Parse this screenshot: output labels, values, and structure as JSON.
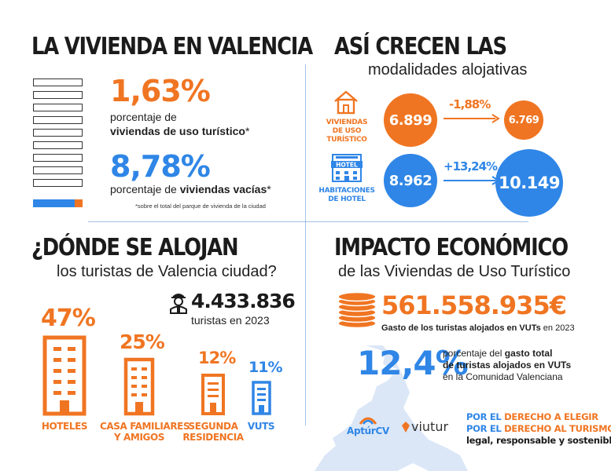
{
  "colors": {
    "orange": "#f07522",
    "blue": "#2f86e6",
    "map": "#dbe7f7",
    "dark": "#1b1b1b"
  },
  "vivienda": {
    "title": "LA VIVIENDA EN VALENCIA",
    "stat1": {
      "value": "1,63%",
      "line1": "porcentaje de",
      "line2_bold": "viviendas de uso turístico",
      "line2_suffix": "*"
    },
    "stat2": {
      "value": "8,78%",
      "line1": "porcentaje de ",
      "line1_bold": "viviendas vacías",
      "line1_suffix": "*"
    },
    "footnote": "*sobre el total del parque de vivienda de la ciudad",
    "bar_shares": {
      "vacias_pct": 8.78,
      "turisticas_pct": 1.63
    }
  },
  "crecen": {
    "title": "ASÍ CRECEN LAS",
    "subtitle": "modalidades alojativas",
    "vut": {
      "icon": "house-icon",
      "label_line1": "VIVIENDAS",
      "label_line2": "DE USO TURÍSTICO",
      "from": "6.899",
      "change": "-1,88%",
      "to": "6.769"
    },
    "hotel": {
      "icon": "hotel-icon",
      "icon_text": "HOTEL",
      "label_line1": "HABITACIONES",
      "label_line2": "DE HOTEL",
      "from": "8.962",
      "change": "+13,24%",
      "to": "10.149"
    }
  },
  "alojan": {
    "title": "¿DÓNDE SE ALOJAN",
    "subtitle": "los turistas de Valencia ciudad?",
    "tourists": {
      "icon": "tourist-icon",
      "value": "4.433.836",
      "caption": "turistas en 2023"
    },
    "buildings": [
      {
        "pct": "47%",
        "label_line1": "HOTELES",
        "label_line2": "",
        "color": "#f07522"
      },
      {
        "pct": "25%",
        "label_line1": "CASA FAMILIARES",
        "label_line2": "Y AMIGOS",
        "color": "#f07522"
      },
      {
        "pct": "12%",
        "label_line1": "SEGUNDA",
        "label_line2": "RESIDENCIA",
        "color": "#f07522"
      },
      {
        "pct": "11%",
        "label_line1": "VUTS",
        "label_line2": "",
        "color": "#2f86e6"
      }
    ]
  },
  "impacto": {
    "title": "IMPACTO ECONÓMICO",
    "subtitle": "de las Viviendas de Uso Turístico",
    "gasto": {
      "icon": "coins-icon",
      "value": "561.558.935€",
      "caption_bold": "Gasto de los turistas alojados en VUTs",
      "caption_suffix": " en 2023"
    },
    "porcentaje": {
      "value": "12,4%",
      "line1": "porcentaje del ",
      "line1_bold": "gasto total",
      "line2_bold": "de turistas alojados en VUTs",
      "line3": "en la Comunidad Valenciana"
    }
  },
  "footer": {
    "logo1": "AptúrCV",
    "logo2": "viutur",
    "slogan1_prefix": "POR EL ",
    "slogan1_rest": "DERECHO A ELEGIR",
    "slogan2_prefix": "POR EL ",
    "slogan2_rest": "DERECHO AL TURISMO",
    "slogan3": "legal, responsable y sostenible"
  }
}
